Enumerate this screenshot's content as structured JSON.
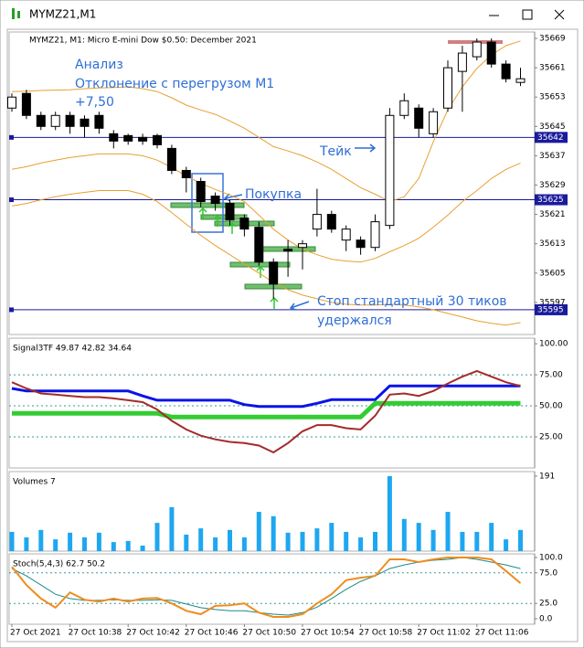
{
  "window": {
    "title": "MYMZ21,M1"
  },
  "chart_data": [
    {
      "type": "candlestick",
      "title": "MYMZ21, M1:  Micro E-mini Dow $0.50: December 2021",
      "categories": [
        "27 Oct 2021",
        null,
        null,
        null,
        "27 Oct 10:38",
        null,
        null,
        null,
        "27 Oct 10:42",
        null,
        null,
        null,
        "27 Oct 10:46",
        null,
        null,
        null,
        "27 Oct 10:50",
        null,
        null,
        null,
        "27 Oct 10:54",
        null,
        null,
        null,
        "27 Oct 10:58",
        null,
        null,
        null,
        "27 Oct 11:02",
        null,
        null,
        null,
        "27 Oct 11:06",
        null,
        null,
        null
      ],
      "open": [
        35650,
        35654,
        35648,
        35645,
        35648,
        35647,
        35648,
        35643,
        35642.5,
        35642,
        35642.5,
        35639,
        35633,
        35630,
        35626,
        35624,
        35620,
        35617.5,
        35608,
        35611.5,
        35612,
        35617,
        35621,
        35614,
        35614,
        35612,
        35618,
        35648,
        35650,
        35643,
        35650,
        35660,
        35664,
        35668,
        35662,
        35657
      ],
      "high": [
        35654,
        35655,
        35649,
        35649,
        35649,
        35648,
        35649,
        35644,
        35643,
        35643,
        35643,
        35640,
        35634,
        35631,
        35627,
        35625,
        35621,
        35619,
        35609,
        35614,
        35614,
        35628,
        35622,
        35618,
        35615,
        35621,
        35650,
        35654,
        35651,
        35650,
        35663,
        35667,
        35669,
        35669,
        35663,
        35661
      ],
      "low": [
        35649,
        35647,
        35644,
        35644,
        35643,
        35642,
        35643,
        35639,
        35640,
        35640,
        35639,
        35632,
        35627,
        35623,
        35622,
        35618,
        35615,
        35607,
        35598,
        35604,
        35606,
        35615,
        35616,
        35611,
        35610,
        35611,
        35617,
        35647,
        35642,
        35642,
        35649,
        35649,
        35663,
        35661,
        35657,
        35656
      ],
      "close": [
        35653,
        35648,
        35645,
        35648,
        35645,
        35645,
        35644.5,
        35641,
        35641,
        35641,
        35640,
        35633,
        35631,
        35624.5,
        35624,
        35619.5,
        35617,
        35608,
        35602,
        35611,
        35613,
        35621,
        35617,
        35617,
        35612,
        35619,
        35648,
        35652,
        35644.5,
        35649,
        35661,
        35665,
        35668,
        35662,
        35658,
        35658
      ],
      "up_color": "#ffffff",
      "down_color": "#000000",
      "series": [
        {
          "color": "#e8a030",
          "width": 1,
          "values": [
            35654.5,
            35654.6,
            35654.8,
            35654.9,
            35655,
            35655.3,
            35655.5,
            35655.6,
            35655.8,
            35655.3,
            35654.5,
            35652.8,
            35650.8,
            35649.5,
            35648.3,
            35646.5,
            35644.5,
            35642,
            35639.5,
            35638.3,
            35637,
            35635.3,
            35633.3,
            35630.8,
            35628.3,
            35626.5,
            35624.5,
            35625.8,
            35630.8,
            35640.8,
            35649.5,
            35655.8,
            35660.8,
            35664.5,
            35667,
            35668.3
          ]
        },
        {
          "color": "#e8a030",
          "width": 1,
          "values": [
            35633.3,
            35634,
            35635,
            35635.8,
            35636.5,
            35637,
            35637.5,
            35637.5,
            35637.5,
            35637,
            35635.8,
            35633.8,
            35631.5,
            35629.5,
            35627.8,
            35626.3,
            35624.5,
            35620.8,
            35617,
            35614,
            35611.5,
            35610,
            35608.8,
            35608.3,
            35608,
            35609,
            35610.8,
            35612.5,
            35614.5,
            35617.5,
            35620.8,
            35624.5,
            35627.5,
            35630.8,
            35633.3,
            35635
          ]
        },
        {
          "color": "#e8a030",
          "width": 1,
          "values": [
            35623.3,
            35624,
            35625,
            35625.8,
            35626.5,
            35627,
            35627.5,
            35627.5,
            35627.5,
            35626.5,
            35624.5,
            35621.5,
            35618.3,
            35615.3,
            35612.5,
            35610,
            35607.5,
            35605,
            35602.5,
            35600.5,
            35599,
            35598,
            35597,
            35596.5,
            35596.3,
            35596.3,
            35596.5,
            35596.3,
            35595.8,
            35595,
            35594,
            35593,
            35592,
            35591.3,
            35590.8,
            35591.5
          ]
        }
      ],
      "hlines": [
        {
          "value": 35642
        },
        {
          "value": 35625
        },
        {
          "value": 35595
        }
      ],
      "hline_color": "#1a1a9c",
      "ylim": [
        35588.25,
        35670.75
      ],
      "yticks": [
        35669,
        35661,
        35653,
        35645,
        35637,
        35629,
        35621,
        35613,
        35605,
        35597
      ],
      "annotations": [
        "Анализ",
        "Отклонение с перегрузом М1",
        "+7,50",
        "Тейк",
        "Покупка",
        "Стоп стандартный 30 тиков",
        "удержался"
      ]
    },
    {
      "type": "line",
      "title": "Signal3TF 49.87 42.82 34.64",
      "series": [
        {
          "color": "#33cc33",
          "width": 5,
          "values": [
            44,
            44,
            44,
            44,
            44,
            44,
            44,
            44,
            44,
            44,
            44,
            41,
            41,
            41,
            41,
            41,
            41,
            41,
            41,
            41,
            41,
            41,
            41,
            41,
            41,
            52,
            52,
            52,
            52,
            52,
            52,
            52,
            52,
            52,
            52,
            52
          ]
        },
        {
          "color": "#0a14e6",
          "width": 3,
          "values": [
            64,
            62,
            62,
            62,
            62,
            62,
            62,
            62,
            62,
            58,
            54.5,
            54.5,
            54.5,
            54.5,
            54.5,
            54.5,
            51,
            49.5,
            49.5,
            49.5,
            49.5,
            52,
            55,
            55,
            55,
            55,
            66,
            66,
            66,
            66,
            66,
            66,
            66,
            66,
            66,
            66
          ]
        },
        {
          "color": "#a52a2a",
          "width": 2,
          "values": [
            69,
            64,
            60,
            59,
            58,
            57,
            57,
            56,
            54.5,
            53,
            47,
            38,
            31,
            26,
            23,
            21,
            20,
            18,
            12.5,
            20,
            29.5,
            34.5,
            34.5,
            32,
            31,
            42,
            59,
            60,
            58,
            62,
            68,
            73.5,
            78,
            73.5,
            69,
            66
          ]
        }
      ],
      "ylim": [
        0,
        104.5
      ],
      "yticks": [
        {
          "value": 100,
          "label": "100.00"
        },
        {
          "value": 75,
          "label": "75.00"
        },
        {
          "value": 50,
          "label": "50.00"
        },
        {
          "value": 25,
          "label": "25.00"
        }
      ],
      "levels": [
        75,
        50,
        25
      ]
    },
    {
      "type": "bar",
      "title": "Volumes 7",
      "color": "#1ea7f0",
      "values": [
        49,
        35,
        54,
        30,
        47,
        35,
        47,
        23,
        26,
        14,
        72,
        112,
        42,
        58,
        35,
        54,
        35,
        100,
        89,
        47,
        49,
        58,
        72,
        49,
        35,
        49,
        191,
        82,
        72,
        54,
        100,
        49,
        49,
        72,
        30,
        54
      ],
      "ylim": [
        0,
        202.6
      ],
      "yticks": [
        191
      ]
    },
    {
      "type": "line",
      "title": "Stoch(5,4,3) 62.7 50.2",
      "series": [
        {
          "color": "#1a8a8a",
          "width": 1,
          "values": [
            82,
            70,
            55,
            40,
            33,
            30,
            30,
            31,
            30,
            30,
            31,
            30,
            24,
            18,
            15,
            13,
            13,
            10,
            7.5,
            6,
            10,
            19,
            33,
            48,
            61,
            70,
            82,
            88,
            92.5,
            95.5,
            97,
            100,
            97,
            92.5,
            88,
            82
          ]
        },
        {
          "color": "#f08c1e",
          "width": 2,
          "values": [
            85,
            55,
            33,
            18,
            43,
            31,
            28,
            33,
            28,
            33,
            34,
            25,
            13,
            7.5,
            21,
            22,
            25,
            10,
            3,
            3,
            7.5,
            25,
            40,
            63,
            67,
            70,
            97,
            97,
            92.5,
            97,
            100,
            100,
            100,
            97,
            78,
            58
          ]
        }
      ],
      "ylim": [
        -9,
        106
      ],
      "yticks": [
        {
          "value": 100,
          "label": "100.0"
        },
        {
          "value": 75,
          "label": "75.0"
        },
        {
          "value": 25,
          "label": "25.0"
        },
        {
          "value": 0,
          "label": "0.0"
        }
      ],
      "levels": [
        75,
        25
      ]
    }
  ]
}
